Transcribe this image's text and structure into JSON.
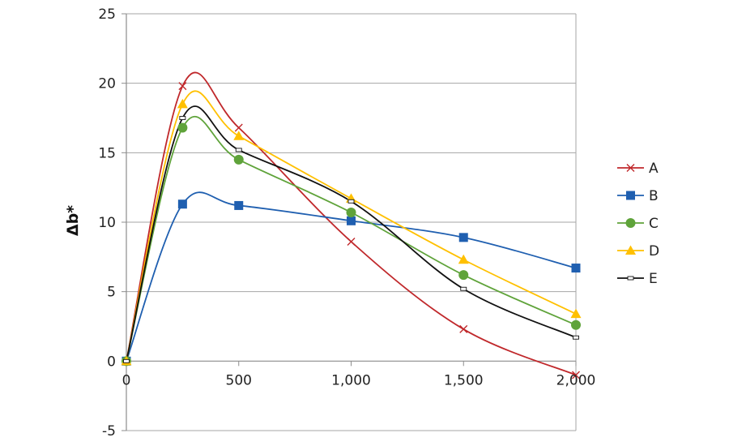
{
  "chart_data": {
    "type": "line",
    "title": "",
    "xlabel": "",
    "ylabel": "Δb*",
    "xlim": [
      0,
      2000
    ],
    "ylim": [
      -5,
      25
    ],
    "x_ticks": [
      0,
      500,
      1000,
      1500,
      2000
    ],
    "x_tick_labels": [
      "0",
      "500",
      "1,000",
      "1,500",
      "2,000"
    ],
    "y_ticks": [
      -5,
      0,
      5,
      10,
      15,
      20,
      25
    ],
    "y_tick_labels": [
      "-5",
      "0",
      "5",
      "10",
      "15",
      "20",
      "25"
    ],
    "grid": "horizontal",
    "legend_position": "right",
    "smooth": true,
    "series": [
      {
        "name": "A",
        "color": "#C0282B",
        "marker": "x",
        "x": [
          0,
          250,
          500,
          1000,
          1500,
          2000
        ],
        "y": [
          0,
          19.8,
          16.8,
          8.6,
          2.3,
          -1.0
        ]
      },
      {
        "name": "B",
        "color": "#1F5FB0",
        "marker": "square",
        "x": [
          0,
          250,
          500,
          1000,
          1500,
          2000
        ],
        "y": [
          0,
          11.3,
          11.2,
          10.1,
          8.9,
          6.7
        ]
      },
      {
        "name": "C",
        "color": "#5FA33A",
        "marker": "circle",
        "x": [
          0,
          250,
          500,
          1000,
          1500,
          2000
        ],
        "y": [
          0,
          16.8,
          14.5,
          10.7,
          6.2,
          2.6
        ]
      },
      {
        "name": "D",
        "color": "#FFC000",
        "marker": "triangle",
        "x": [
          0,
          250,
          500,
          1000,
          1500,
          2000
        ],
        "y": [
          0,
          18.5,
          16.2,
          11.7,
          7.3,
          3.4
        ]
      },
      {
        "name": "E",
        "color": "#111111",
        "marker": "dash",
        "x": [
          0,
          250,
          500,
          1000,
          1500,
          2000
        ],
        "y": [
          0,
          17.5,
          15.2,
          11.5,
          5.2,
          1.7
        ]
      }
    ]
  }
}
